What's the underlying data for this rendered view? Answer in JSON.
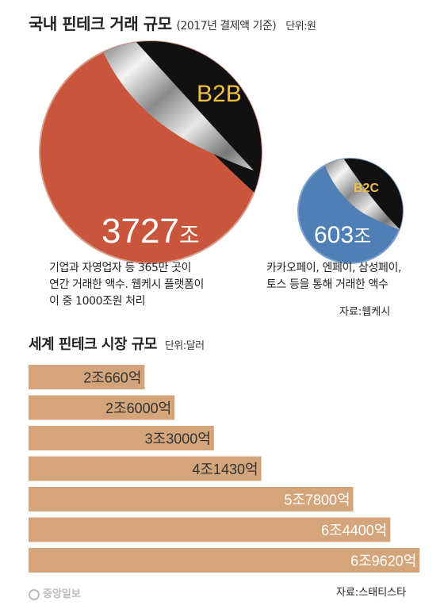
{
  "domestic": {
    "title": "국내 핀테크 거래 규모",
    "subtitle": "(2017년 결제액 기준)",
    "unit": "단위:원",
    "b2b": {
      "label": "B2B",
      "value": "3727",
      "value_unit": "조"
    },
    "b2c": {
      "label": "B2C",
      "value": "603",
      "value_unit": "조"
    },
    "b2b_desc": [
      "기업과 자영업자 등 365만 곳이",
      "연간 거래한 액수. 웹케시 플랫폼이",
      "이 중 1000조원 처리"
    ],
    "b2c_desc": [
      "카카오페이, 엔페이, 삼성페이,",
      "토스 등을 통해 거래한 액수"
    ],
    "source": "자료:웹케시"
  },
  "global": {
    "title": "세계 핀테크 시장 규모",
    "unit": "단위:달러",
    "source": "자료:스태티스타"
  },
  "colors": {
    "b2b_red": "#c9553d",
    "b2c_blue": "#4f7fb5",
    "bar": "#d4a57b",
    "b2c_label": "#f0c040"
  },
  "logo": "중앙일보",
  "chart_data": [
    {
      "type": "bar",
      "title": "국내 핀테크 거래 규모",
      "categories": [
        "B2B",
        "B2C"
      ],
      "values": [
        3727,
        603
      ],
      "unit": "조원"
    },
    {
      "type": "bar",
      "orientation": "horizontal",
      "title": "세계 핀테크 시장 규모",
      "values": [
        2066,
        2600,
        3300,
        4143,
        5780,
        6440,
        6962
      ],
      "labels": [
        "2조660억",
        "2조6000억",
        "3조3000억",
        "4조1430억",
        "5조7800억",
        "6조4400억",
        "6조9620억"
      ],
      "unit": "달러",
      "label_colors": [
        "#333333",
        "#333333",
        "#333333",
        "#333333",
        "#ffffff",
        "#ffffff",
        "#ffffff"
      ]
    }
  ]
}
